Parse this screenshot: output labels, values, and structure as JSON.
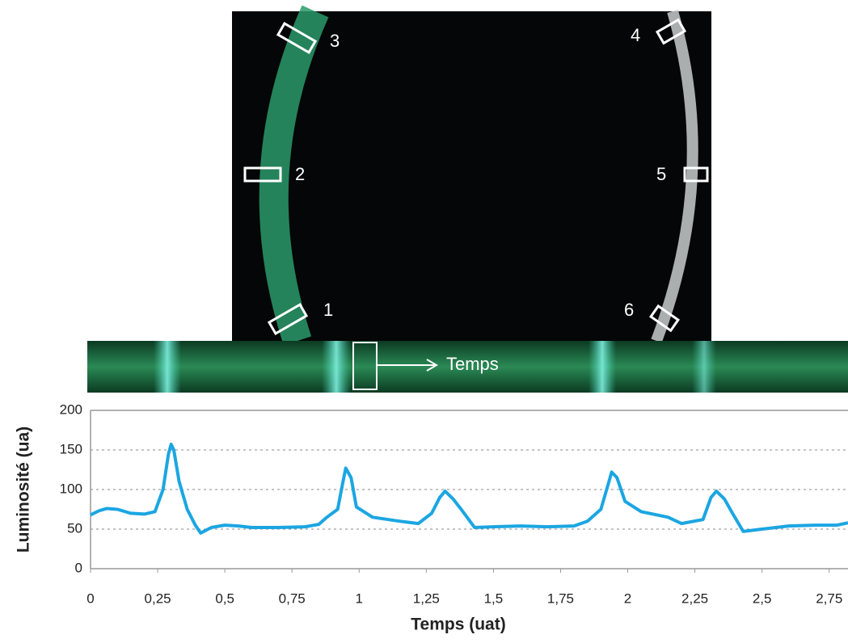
{
  "figure": {
    "image_labels": [
      "1",
      "2",
      "3",
      "4",
      "5",
      "6"
    ],
    "strip_label": "Temps"
  },
  "chart_data": {
    "type": "line",
    "xlabel": "Temps (uat)",
    "ylabel": "Luminosité (ua)",
    "x": [
      0,
      0.03,
      0.06,
      0.1,
      0.15,
      0.2,
      0.24,
      0.27,
      0.29,
      0.3,
      0.31,
      0.33,
      0.36,
      0.39,
      0.41,
      0.45,
      0.5,
      0.55,
      0.6,
      0.7,
      0.8,
      0.85,
      0.88,
      0.92,
      0.94,
      0.95,
      0.97,
      0.99,
      1.05,
      1.15,
      1.22,
      1.27,
      1.3,
      1.32,
      1.35,
      1.38,
      1.43,
      1.5,
      1.6,
      1.7,
      1.8,
      1.85,
      1.9,
      1.93,
      1.94,
      1.96,
      1.99,
      2.05,
      2.15,
      2.2,
      2.28,
      2.31,
      2.33,
      2.36,
      2.39,
      2.43,
      2.5,
      2.6,
      2.7,
      2.78,
      2.82
    ],
    "series": [
      {
        "name": "Luminosité",
        "color": "#1ba6e2",
        "values": [
          68,
          73,
          76,
          75,
          70,
          69,
          72,
          100,
          145,
          157,
          150,
          110,
          75,
          55,
          45,
          52,
          55,
          54,
          52,
          52,
          53,
          56,
          65,
          75,
          110,
          127,
          115,
          78,
          65,
          60,
          57,
          70,
          90,
          98,
          88,
          75,
          52,
          53,
          54,
          53,
          54,
          60,
          75,
          110,
          122,
          115,
          85,
          72,
          65,
          57,
          62,
          90,
          98,
          88,
          70,
          47,
          50,
          54,
          55,
          55,
          58
        ]
      }
    ],
    "xlim": [
      0,
      2.82
    ],
    "ylim": [
      0,
      200
    ],
    "xticks": [
      0,
      {
        "value": 0.25,
        "label": "0,25"
      },
      {
        "value": 0.5,
        "label": "0,5"
      },
      {
        "value": 0.75,
        "label": "0,75"
      },
      1,
      {
        "value": 1.25,
        "label": "1,25"
      },
      {
        "value": 1.5,
        "label": "1,5"
      },
      {
        "value": 1.75,
        "label": "1,75"
      },
      2,
      {
        "value": 2.25,
        "label": "2,25"
      },
      {
        "value": 2.5,
        "label": "2,5"
      },
      {
        "value": 2.75,
        "label": "2,75"
      }
    ],
    "yticks": [
      0,
      50,
      100,
      150,
      200
    ],
    "grid": true
  }
}
